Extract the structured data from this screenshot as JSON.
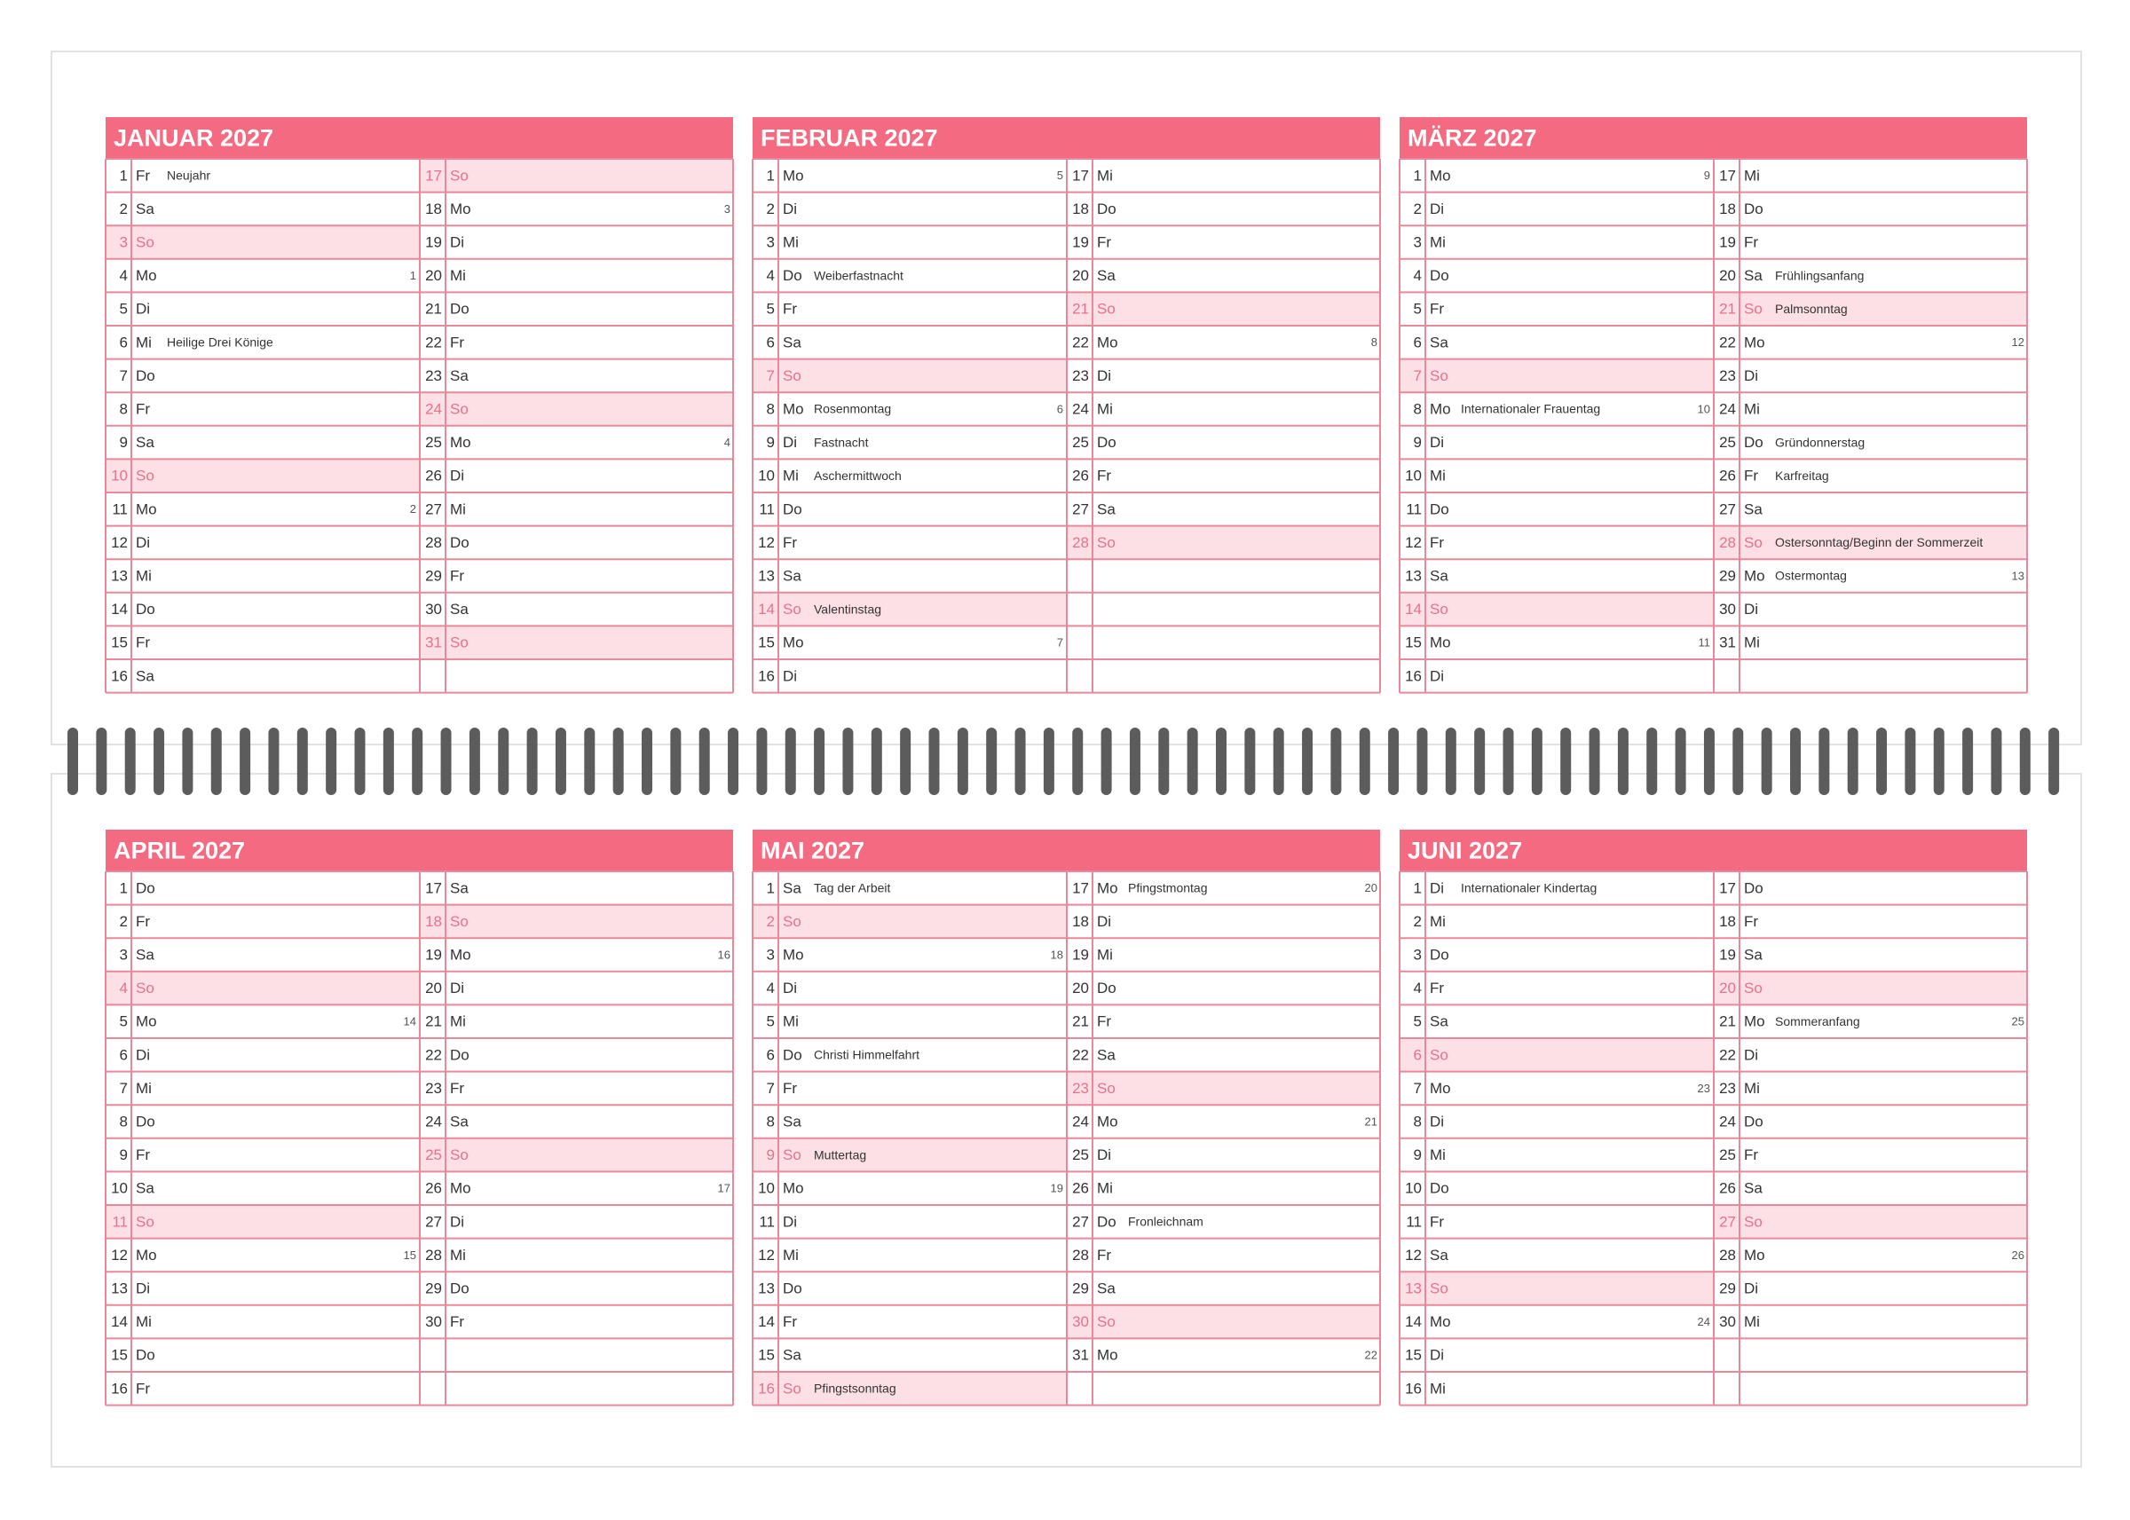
{
  "months": [
    {
      "title": "JANUAR 2027",
      "days": [
        {
          "day": 1,
          "wd": "Fr",
          "note": "Neujahr"
        },
        {
          "day": 2,
          "wd": "Sa"
        },
        {
          "day": 3,
          "wd": "So",
          "highlight": true
        },
        {
          "day": 4,
          "wd": "Mo",
          "week": 1
        },
        {
          "day": 5,
          "wd": "Di"
        },
        {
          "day": 6,
          "wd": "Mi",
          "note": "Heilige Drei Könige"
        },
        {
          "day": 7,
          "wd": "Do"
        },
        {
          "day": 8,
          "wd": "Fr"
        },
        {
          "day": 9,
          "wd": "Sa"
        },
        {
          "day": 10,
          "wd": "So",
          "highlight": true
        },
        {
          "day": 11,
          "wd": "Mo",
          "week": 2
        },
        {
          "day": 12,
          "wd": "Di"
        },
        {
          "day": 13,
          "wd": "Mi"
        },
        {
          "day": 14,
          "wd": "Do"
        },
        {
          "day": 15,
          "wd": "Fr"
        },
        {
          "day": 16,
          "wd": "Sa"
        },
        {
          "day": 17,
          "wd": "So",
          "highlight": true
        },
        {
          "day": 18,
          "wd": "Mo",
          "week": 3
        },
        {
          "day": 19,
          "wd": "Di"
        },
        {
          "day": 20,
          "wd": "Mi"
        },
        {
          "day": 21,
          "wd": "Do"
        },
        {
          "day": 22,
          "wd": "Fr"
        },
        {
          "day": 23,
          "wd": "Sa"
        },
        {
          "day": 24,
          "wd": "So",
          "highlight": true
        },
        {
          "day": 25,
          "wd": "Mo",
          "week": 4
        },
        {
          "day": 26,
          "wd": "Di"
        },
        {
          "day": 27,
          "wd": "Mi"
        },
        {
          "day": 28,
          "wd": "Do"
        },
        {
          "day": 29,
          "wd": "Fr"
        },
        {
          "day": 30,
          "wd": "Sa"
        },
        {
          "day": 31,
          "wd": "So",
          "highlight": true
        }
      ]
    },
    {
      "title": "FEBRUAR 2027",
      "days": [
        {
          "day": 1,
          "wd": "Mo",
          "week": 5
        },
        {
          "day": 2,
          "wd": "Di"
        },
        {
          "day": 3,
          "wd": "Mi"
        },
        {
          "day": 4,
          "wd": "Do",
          "note": "Weiberfastnacht"
        },
        {
          "day": 5,
          "wd": "Fr"
        },
        {
          "day": 6,
          "wd": "Sa"
        },
        {
          "day": 7,
          "wd": "So",
          "highlight": true
        },
        {
          "day": 8,
          "wd": "Mo",
          "note": "Rosenmontag",
          "week": 6
        },
        {
          "day": 9,
          "wd": "Di",
          "note": "Fastnacht"
        },
        {
          "day": 10,
          "wd": "Mi",
          "note": "Aschermittwoch"
        },
        {
          "day": 11,
          "wd": "Do"
        },
        {
          "day": 12,
          "wd": "Fr"
        },
        {
          "day": 13,
          "wd": "Sa"
        },
        {
          "day": 14,
          "wd": "So",
          "note": "Valentinstag",
          "highlight": true
        },
        {
          "day": 15,
          "wd": "Mo",
          "week": 7
        },
        {
          "day": 16,
          "wd": "Di"
        },
        {
          "day": 17,
          "wd": "Mi"
        },
        {
          "day": 18,
          "wd": "Do"
        },
        {
          "day": 19,
          "wd": "Fr"
        },
        {
          "day": 20,
          "wd": "Sa"
        },
        {
          "day": 21,
          "wd": "So",
          "highlight": true
        },
        {
          "day": 22,
          "wd": "Mo",
          "week": 8
        },
        {
          "day": 23,
          "wd": "Di"
        },
        {
          "day": 24,
          "wd": "Mi"
        },
        {
          "day": 25,
          "wd": "Do"
        },
        {
          "day": 26,
          "wd": "Fr"
        },
        {
          "day": 27,
          "wd": "Sa"
        },
        {
          "day": 28,
          "wd": "So",
          "highlight": true
        }
      ]
    },
    {
      "title": "MÄRZ 2027",
      "days": [
        {
          "day": 1,
          "wd": "Mo",
          "week": 9
        },
        {
          "day": 2,
          "wd": "Di"
        },
        {
          "day": 3,
          "wd": "Mi"
        },
        {
          "day": 4,
          "wd": "Do"
        },
        {
          "day": 5,
          "wd": "Fr"
        },
        {
          "day": 6,
          "wd": "Sa"
        },
        {
          "day": 7,
          "wd": "So",
          "highlight": true
        },
        {
          "day": 8,
          "wd": "Mo",
          "note": "Internationaler Frauentag",
          "week": 10
        },
        {
          "day": 9,
          "wd": "Di"
        },
        {
          "day": 10,
          "wd": "Mi"
        },
        {
          "day": 11,
          "wd": "Do"
        },
        {
          "day": 12,
          "wd": "Fr"
        },
        {
          "day": 13,
          "wd": "Sa"
        },
        {
          "day": 14,
          "wd": "So",
          "highlight": true
        },
        {
          "day": 15,
          "wd": "Mo",
          "week": 11
        },
        {
          "day": 16,
          "wd": "Di"
        },
        {
          "day": 17,
          "wd": "Mi"
        },
        {
          "day": 18,
          "wd": "Do"
        },
        {
          "day": 19,
          "wd": "Fr"
        },
        {
          "day": 20,
          "wd": "Sa",
          "note": "Frühlingsanfang"
        },
        {
          "day": 21,
          "wd": "So",
          "note": "Palmsonntag",
          "highlight": true
        },
        {
          "day": 22,
          "wd": "Mo",
          "week": 12
        },
        {
          "day": 23,
          "wd": "Di"
        },
        {
          "day": 24,
          "wd": "Mi"
        },
        {
          "day": 25,
          "wd": "Do",
          "note": "Gründonnerstag"
        },
        {
          "day": 26,
          "wd": "Fr",
          "note": "Karfreitag"
        },
        {
          "day": 27,
          "wd": "Sa"
        },
        {
          "day": 28,
          "wd": "So",
          "note": "Ostersonntag/Beginn der Sommerzeit",
          "highlight": true
        },
        {
          "day": 29,
          "wd": "Mo",
          "note": "Ostermontag",
          "week": 13
        },
        {
          "day": 30,
          "wd": "Di"
        },
        {
          "day": 31,
          "wd": "Mi"
        }
      ]
    },
    {
      "title": "APRIL 2027",
      "days": [
        {
          "day": 1,
          "wd": "Do"
        },
        {
          "day": 2,
          "wd": "Fr"
        },
        {
          "day": 3,
          "wd": "Sa"
        },
        {
          "day": 4,
          "wd": "So",
          "highlight": true
        },
        {
          "day": 5,
          "wd": "Mo",
          "week": 14
        },
        {
          "day": 6,
          "wd": "Di"
        },
        {
          "day": 7,
          "wd": "Mi"
        },
        {
          "day": 8,
          "wd": "Do"
        },
        {
          "day": 9,
          "wd": "Fr"
        },
        {
          "day": 10,
          "wd": "Sa"
        },
        {
          "day": 11,
          "wd": "So",
          "highlight": true
        },
        {
          "day": 12,
          "wd": "Mo",
          "week": 15
        },
        {
          "day": 13,
          "wd": "Di"
        },
        {
          "day": 14,
          "wd": "Mi"
        },
        {
          "day": 15,
          "wd": "Do"
        },
        {
          "day": 16,
          "wd": "Fr"
        },
        {
          "day": 17,
          "wd": "Sa"
        },
        {
          "day": 18,
          "wd": "So",
          "highlight": true
        },
        {
          "day": 19,
          "wd": "Mo",
          "week": 16
        },
        {
          "day": 20,
          "wd": "Di"
        },
        {
          "day": 21,
          "wd": "Mi"
        },
        {
          "day": 22,
          "wd": "Do"
        },
        {
          "day": 23,
          "wd": "Fr"
        },
        {
          "day": 24,
          "wd": "Sa"
        },
        {
          "day": 25,
          "wd": "So",
          "highlight": true
        },
        {
          "day": 26,
          "wd": "Mo",
          "week": 17
        },
        {
          "day": 27,
          "wd": "Di"
        },
        {
          "day": 28,
          "wd": "Mi"
        },
        {
          "day": 29,
          "wd": "Do"
        },
        {
          "day": 30,
          "wd": "Fr"
        }
      ]
    },
    {
      "title": "MAI 2027",
      "days": [
        {
          "day": 1,
          "wd": "Sa",
          "note": "Tag der Arbeit"
        },
        {
          "day": 2,
          "wd": "So",
          "highlight": true
        },
        {
          "day": 3,
          "wd": "Mo",
          "week": 18
        },
        {
          "day": 4,
          "wd": "Di"
        },
        {
          "day": 5,
          "wd": "Mi"
        },
        {
          "day": 6,
          "wd": "Do",
          "note": "Christi Himmelfahrt"
        },
        {
          "day": 7,
          "wd": "Fr"
        },
        {
          "day": 8,
          "wd": "Sa"
        },
        {
          "day": 9,
          "wd": "So",
          "note": "Muttertag",
          "highlight": true
        },
        {
          "day": 10,
          "wd": "Mo",
          "week": 19
        },
        {
          "day": 11,
          "wd": "Di"
        },
        {
          "day": 12,
          "wd": "Mi"
        },
        {
          "day": 13,
          "wd": "Do"
        },
        {
          "day": 14,
          "wd": "Fr"
        },
        {
          "day": 15,
          "wd": "Sa"
        },
        {
          "day": 16,
          "wd": "So",
          "note": "Pfingstsonntag",
          "highlight": true
        },
        {
          "day": 17,
          "wd": "Mo",
          "note": "Pfingstmontag",
          "week": 20
        },
        {
          "day": 18,
          "wd": "Di"
        },
        {
          "day": 19,
          "wd": "Mi"
        },
        {
          "day": 20,
          "wd": "Do"
        },
        {
          "day": 21,
          "wd": "Fr"
        },
        {
          "day": 22,
          "wd": "Sa"
        },
        {
          "day": 23,
          "wd": "So",
          "highlight": true
        },
        {
          "day": 24,
          "wd": "Mo",
          "week": 21
        },
        {
          "day": 25,
          "wd": "Di"
        },
        {
          "day": 26,
          "wd": "Mi"
        },
        {
          "day": 27,
          "wd": "Do",
          "note": "Fronleichnam"
        },
        {
          "day": 28,
          "wd": "Fr"
        },
        {
          "day": 29,
          "wd": "Sa"
        },
        {
          "day": 30,
          "wd": "So",
          "highlight": true
        },
        {
          "day": 31,
          "wd": "Mo",
          "week": 22
        }
      ]
    },
    {
      "title": "JUNI 2027",
      "days": [
        {
          "day": 1,
          "wd": "Di",
          "note": "Internationaler Kindertag"
        },
        {
          "day": 2,
          "wd": "Mi"
        },
        {
          "day": 3,
          "wd": "Do"
        },
        {
          "day": 4,
          "wd": "Fr"
        },
        {
          "day": 5,
          "wd": "Sa"
        },
        {
          "day": 6,
          "wd": "So",
          "highlight": true
        },
        {
          "day": 7,
          "wd": "Mo",
          "week": 23
        },
        {
          "day": 8,
          "wd": "Di"
        },
        {
          "day": 9,
          "wd": "Mi"
        },
        {
          "day": 10,
          "wd": "Do"
        },
        {
          "day": 11,
          "wd": "Fr"
        },
        {
          "day": 12,
          "wd": "Sa"
        },
        {
          "day": 13,
          "wd": "So",
          "highlight": true
        },
        {
          "day": 14,
          "wd": "Mo",
          "week": 24
        },
        {
          "day": 15,
          "wd": "Di"
        },
        {
          "day": 16,
          "wd": "Mi"
        },
        {
          "day": 17,
          "wd": "Do"
        },
        {
          "day": 18,
          "wd": "Fr"
        },
        {
          "day": 19,
          "wd": "Sa"
        },
        {
          "day": 20,
          "wd": "So",
          "highlight": true
        },
        {
          "day": 21,
          "wd": "Mo",
          "note": "Sommeranfang",
          "week": 25
        },
        {
          "day": 22,
          "wd": "Di"
        },
        {
          "day": 23,
          "wd": "Mi"
        },
        {
          "day": 24,
          "wd": "Do"
        },
        {
          "day": 25,
          "wd": "Fr"
        },
        {
          "day": 26,
          "wd": "Sa"
        },
        {
          "day": 27,
          "wd": "So",
          "highlight": true
        },
        {
          "day": 28,
          "wd": "Mo",
          "week": 26
        },
        {
          "day": 29,
          "wd": "Di"
        },
        {
          "day": 30,
          "wd": "Mi"
        }
      ]
    }
  ]
}
